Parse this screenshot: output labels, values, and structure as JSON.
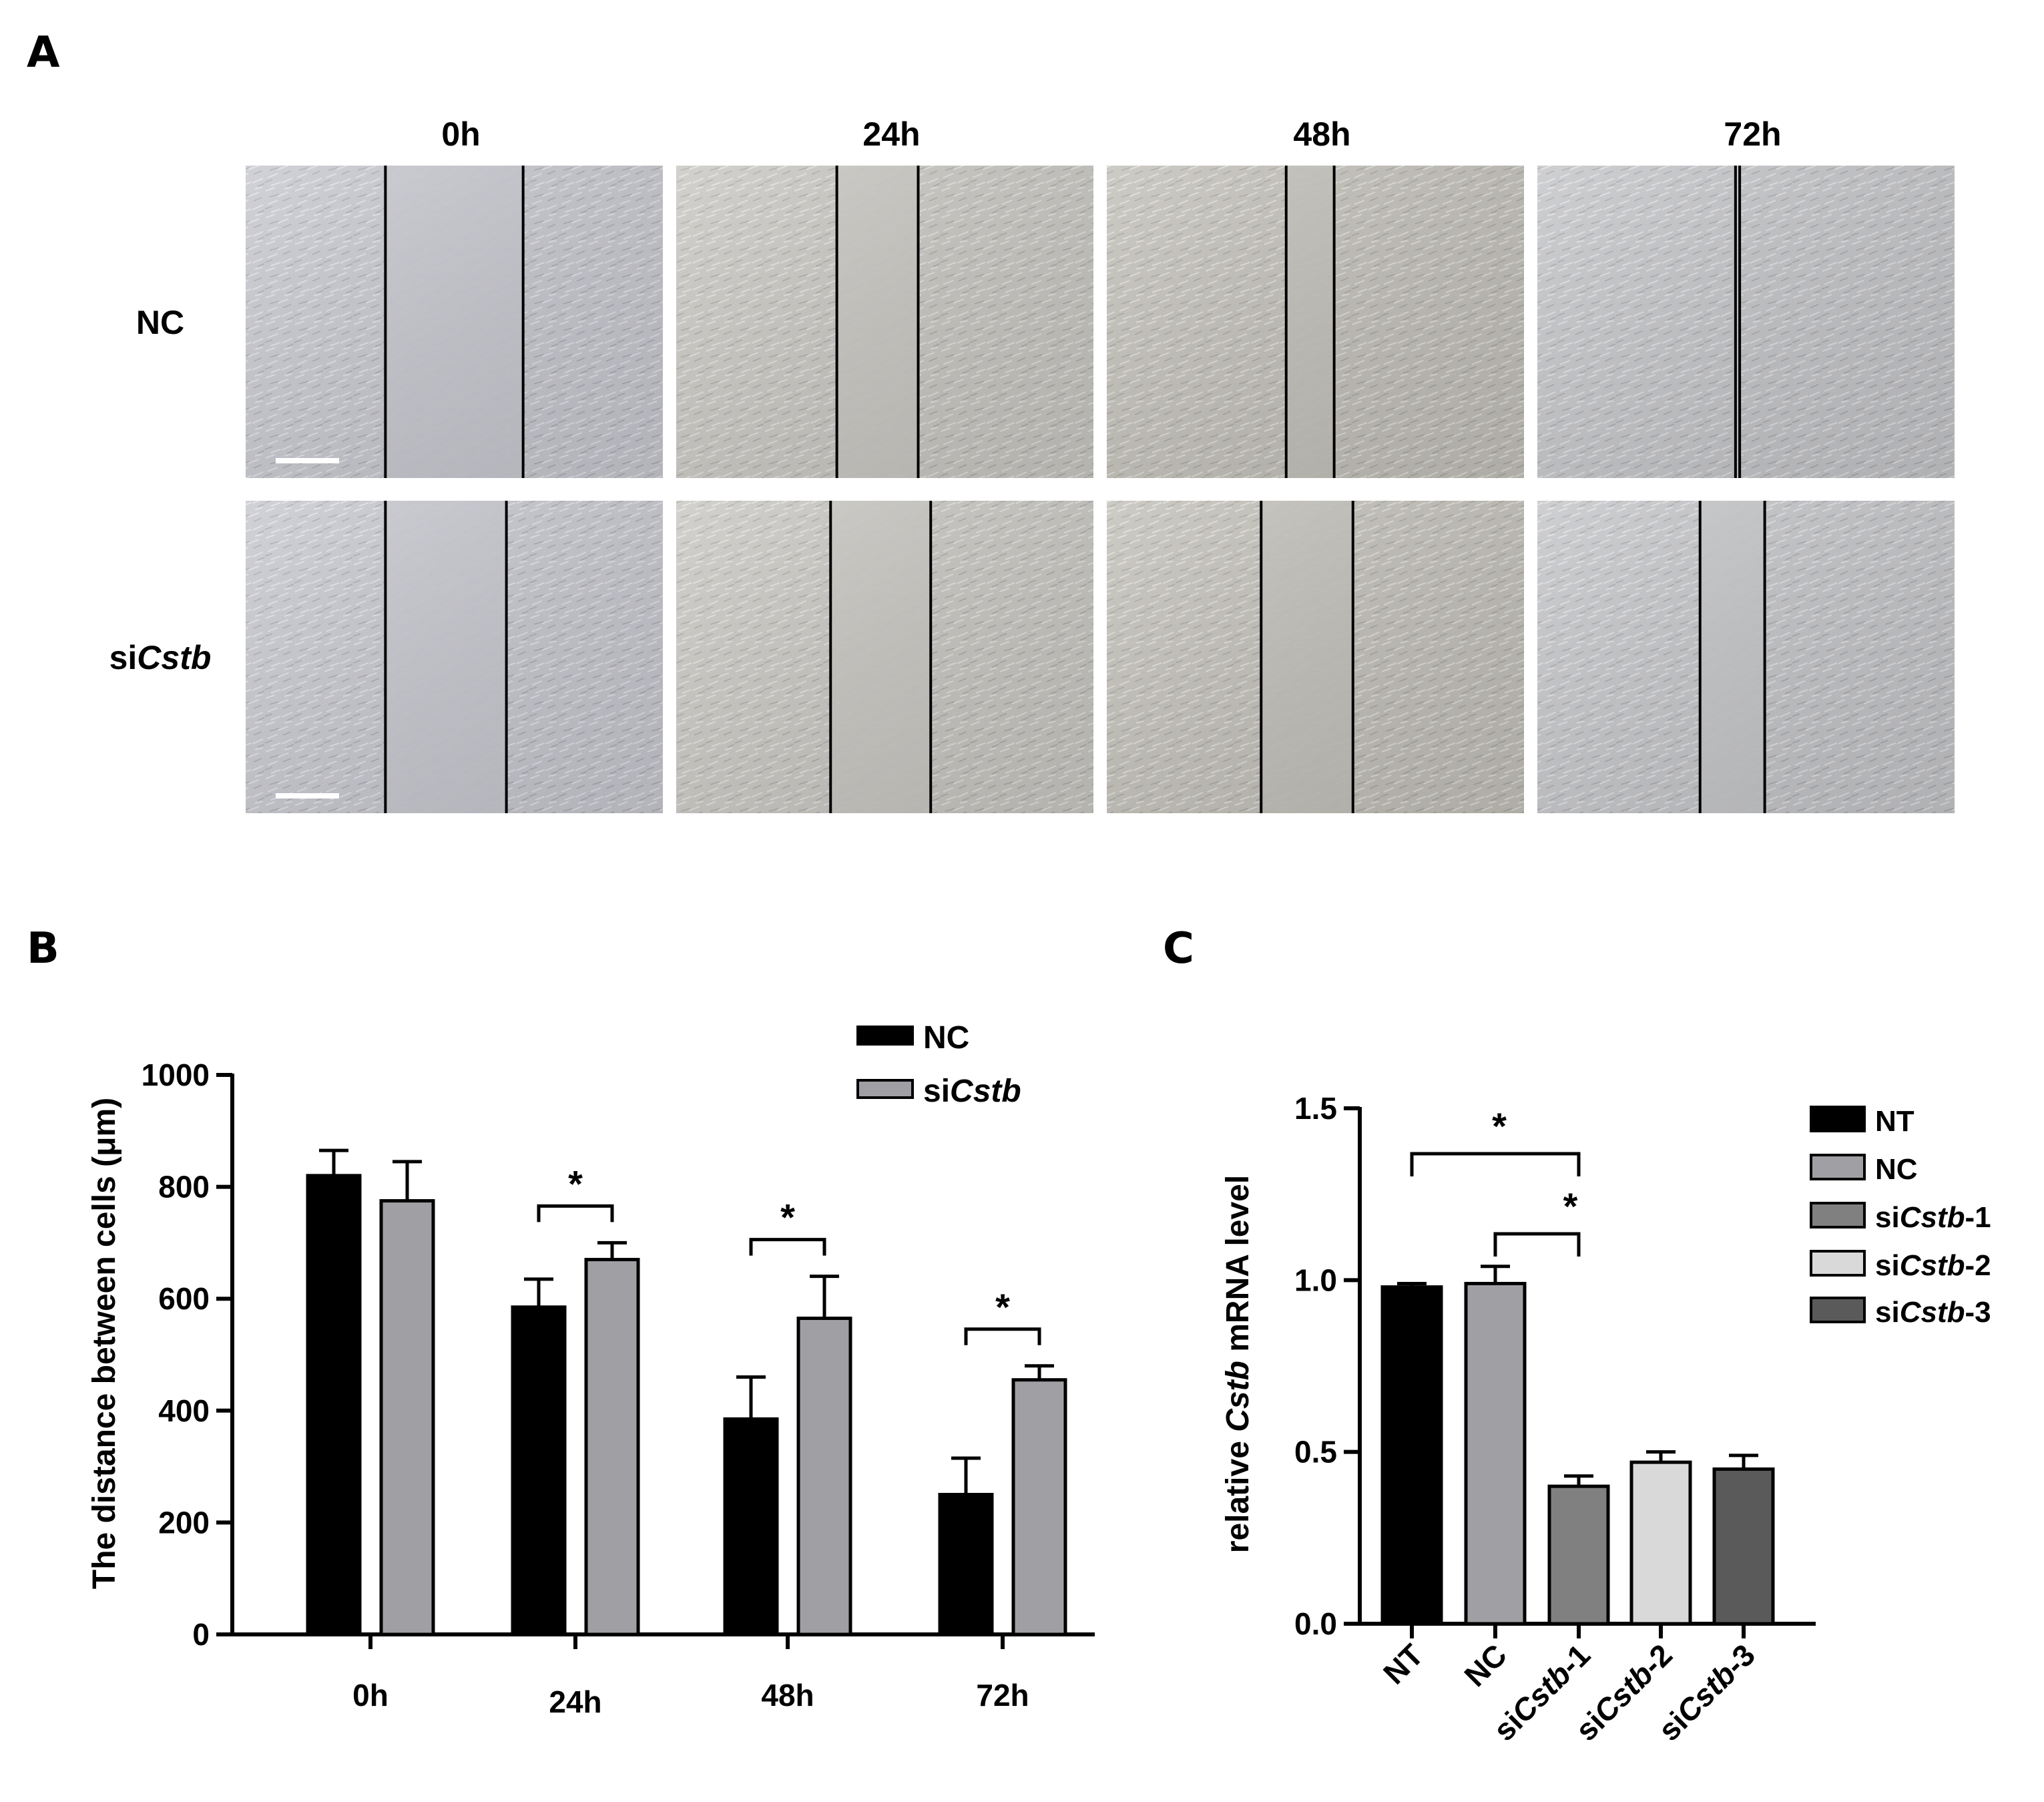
{
  "panel_a": {
    "letter": "A",
    "time_labels": [
      "0h",
      "24h",
      "48h",
      "72h"
    ],
    "rows": [
      {
        "label": "NC",
        "label_italic": "",
        "gaps": [
          [
            0.335,
            0.665
          ],
          [
            0.385,
            0.58
          ],
          [
            0.43,
            0.545
          ],
          [
            0.475,
            0.485
          ]
        ]
      },
      {
        "label": "si",
        "label_italic": "Cstb",
        "gaps": [
          [
            0.335,
            0.625
          ],
          [
            0.37,
            0.61
          ],
          [
            0.37,
            0.59
          ],
          [
            0.39,
            0.545
          ]
        ]
      }
    ],
    "background_colors": [
      "#c7c8cf",
      "#c9c7c2",
      "#c2c0b8",
      "#c4c5c8"
    ]
  },
  "panel_b": {
    "letter": "B",
    "legend": [
      {
        "name": "NC",
        "italic": "",
        "color": "#000000"
      },
      {
        "name": "si",
        "italic": "Cstb",
        "color": "#a0a0a4"
      }
    ],
    "significance_marker": "*"
  },
  "panel_c": {
    "letter": "C",
    "legend": [
      {
        "name": "NT",
        "italic": "",
        "suffix": "",
        "color": "#000000"
      },
      {
        "name": "NC",
        "italic": "",
        "suffix": "",
        "color": "#a0a0a4"
      },
      {
        "name": "si",
        "italic": "Cstb",
        "suffix": "-1",
        "color": "#808080"
      },
      {
        "name": "si",
        "italic": "Cstb",
        "suffix": "-2",
        "color": "#d9d9d9"
      },
      {
        "name": "si",
        "italic": "Cstb",
        "suffix": "-3",
        "color": "#5a5a5a"
      }
    ],
    "significance_marker": "*"
  },
  "chart_data": [
    {
      "type": "bar",
      "panel": "B",
      "categories": [
        "0h",
        "24h",
        "48h",
        "72h"
      ],
      "series": [
        {
          "name": "NC",
          "values": [
            820,
            585,
            385,
            250
          ],
          "errors": [
            45,
            50,
            75,
            65
          ],
          "color": "#000000"
        },
        {
          "name": "siCstb",
          "values": [
            775,
            670,
            565,
            455
          ],
          "errors": [
            70,
            30,
            75,
            25
          ],
          "color": "#a0a0a4"
        }
      ],
      "ylabel": "The distance between cells (μm)",
      "ylim": [
        0,
        1000
      ],
      "yticks": [
        0,
        200,
        400,
        600,
        800,
        1000
      ],
      "significance": [
        {
          "category": "24h",
          "marker": "*"
        },
        {
          "category": "48h",
          "marker": "*"
        },
        {
          "category": "72h",
          "marker": "*"
        }
      ]
    },
    {
      "type": "bar",
      "panel": "C",
      "categories": [
        "NT",
        "NC",
        "siCstb-1",
        "siCstb-2",
        "siCstb-3"
      ],
      "values": [
        0.98,
        0.99,
        0.4,
        0.47,
        0.45
      ],
      "errors": [
        0.01,
        0.05,
        0.03,
        0.03,
        0.04
      ],
      "colors": [
        "#000000",
        "#a0a0a4",
        "#808080",
        "#d9d9d9",
        "#5a5a5a"
      ],
      "ylabel_parts": [
        "relative ",
        "Cstb",
        " mRNA level"
      ],
      "ylim": [
        0,
        1.5
      ],
      "yticks": [
        "0.0",
        "0.5",
        "1.0",
        "1.5"
      ],
      "significance": [
        {
          "from": "NT",
          "to": "siCstb-1",
          "marker": "*"
        },
        {
          "from": "NC",
          "to": "siCstb-1",
          "marker": "*"
        }
      ]
    }
  ]
}
